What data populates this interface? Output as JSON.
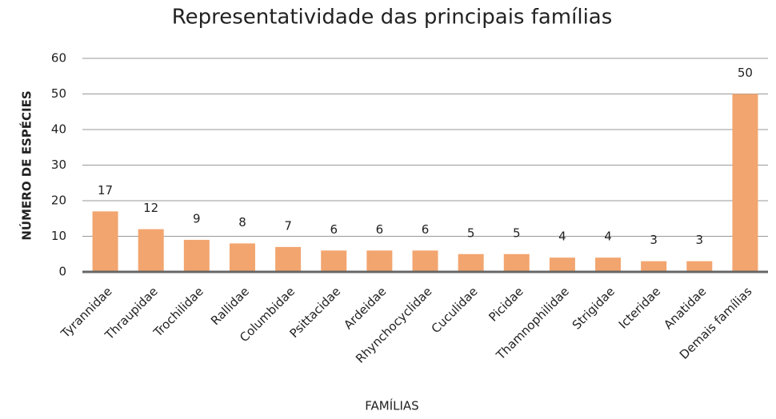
{
  "chart_data": {
    "type": "bar",
    "title": "Representatividade das principais famílias",
    "x_label": "FAMÍLIAS",
    "y_label": "NÚMERO DE ESPÉCIES",
    "categories": [
      "Tyrannidae",
      "Thraupidae",
      "Trochilidae",
      "Rallidae",
      "Columbidae",
      "Psittacidae",
      "Ardeidae",
      "Rhynchocyclidae",
      "Cuculidae",
      "Picidae",
      "Thamnophilidae",
      "Strigidae",
      "Icteridae",
      "Anatidae",
      "Demais famílias"
    ],
    "values": [
      17,
      12,
      9,
      8,
      7,
      6,
      6,
      6,
      5,
      5,
      4,
      4,
      3,
      3,
      50
    ],
    "color": "#f2a56f",
    "ylim": [
      0,
      60
    ],
    "yticks": [
      0,
      10,
      20,
      30,
      40,
      50,
      60
    ],
    "grid": true
  }
}
